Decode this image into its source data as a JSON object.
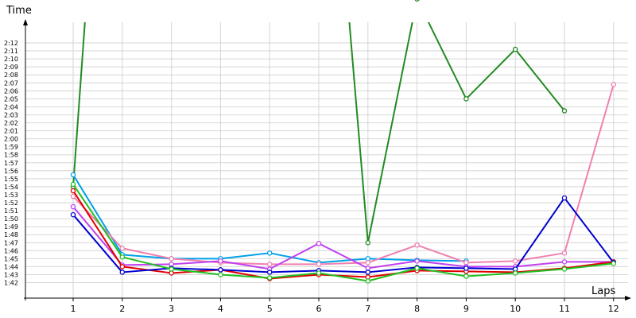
{
  "chart_data": {
    "type": "line",
    "xlabel": "Laps",
    "ylabel": "Time",
    "x": [
      1,
      2,
      3,
      4,
      5,
      6,
      7,
      8,
      9,
      10,
      11,
      12
    ],
    "y_ticks": [
      "1:42",
      "1:43",
      "1:44",
      "1:45",
      "1:46",
      "1:47",
      "1:48",
      "1:49",
      "1:50",
      "1:51",
      "1:52",
      "1:53",
      "1:54",
      "1:55",
      "1:56",
      "1:57",
      "1:58",
      "1:59",
      "2:00",
      "2:01",
      "2:02",
      "2:03",
      "2:04",
      "2:05",
      "2:06",
      "2:07",
      "2:08",
      "2:09",
      "2:10",
      "2:11",
      "2:12"
    ],
    "y_unit_seconds_range": [
      101.5,
      133
    ],
    "grid": true,
    "series": [
      {
        "color": "#228B22",
        "values": [
          114.0,
          145.0,
          144.5,
          144.8,
          144.8,
          180.0,
          107.0,
          137.5,
          125.0,
          131.2,
          123.5,
          null
        ],
        "above_range": [
          2,
          3
        ]
      },
      {
        "color": "#00A0E8",
        "values": [
          115.5,
          105.5,
          105.0,
          105.0,
          105.7,
          104.5,
          105.0,
          104.8,
          104.7,
          null,
          null,
          null
        ]
      },
      {
        "color": "#F080B0",
        "values": [
          112.8,
          106.3,
          105.0,
          104.5,
          104.3,
          104.3,
          104.5,
          106.7,
          104.5,
          104.7,
          105.7,
          126.8
        ]
      },
      {
        "color": "#C040F0",
        "values": [
          111.5,
          104.2,
          104.3,
          104.7,
          103.7,
          106.9,
          103.8,
          104.7,
          104.0,
          104.0,
          104.6,
          104.6
        ]
      },
      {
        "color": "#E00000",
        "values": [
          113.5,
          104.0,
          103.2,
          103.6,
          102.5,
          103.0,
          102.7,
          103.5,
          103.4,
          103.3,
          103.8,
          104.6
        ]
      },
      {
        "color": "#0000D0",
        "values": [
          110.5,
          103.3,
          103.8,
          103.6,
          103.3,
          103.5,
          103.3,
          103.9,
          103.8,
          103.7,
          112.6,
          104.5
        ]
      },
      {
        "color": "#20C020",
        "values": [
          114.3,
          105.2,
          103.7,
          103.0,
          102.6,
          103.2,
          102.2,
          103.8,
          102.8,
          103.2,
          103.7,
          104.4
        ]
      }
    ]
  }
}
